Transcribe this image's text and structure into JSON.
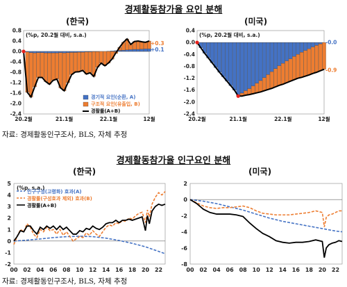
{
  "figure1": {
    "title": "경제활동참가율 요인 분해",
    "source": "자료: 경제활동인구조사, BLS, 자체 추정",
    "charts": [
      {
        "country": "(한국)",
        "unit_label": "(%p, 20.2월 대비, s.a.)",
        "chart_data": {
          "type": "bar",
          "x_tick_labels": [
            "20.2월",
            "21.1월",
            "22.1월",
            "12월"
          ],
          "y_ticks": [
            "0.8",
            "0.4",
            "0.0",
            "-0.4",
            "-0.8",
            "-1.2",
            "-1.6",
            "-2.0",
            "-2.4"
          ],
          "ylim": [
            -2.4,
            0.8
          ],
          "months": [
            "20.2",
            "20.3",
            "20.4",
            "20.5",
            "20.6",
            "20.7",
            "20.8",
            "20.9",
            "20.10",
            "20.11",
            "20.12",
            "21.1",
            "21.2",
            "21.3",
            "21.4",
            "21.5",
            "21.6",
            "21.7",
            "21.8",
            "21.9",
            "21.10",
            "21.11",
            "21.12",
            "22.1",
            "22.2",
            "22.3",
            "22.4",
            "22.5",
            "22.6",
            "22.7",
            "22.8",
            "22.9",
            "22.10",
            "22.11",
            "22.12"
          ],
          "series": [
            {
              "name": "경기적 요인(순환, A)",
              "values": [
                0,
                -0.02,
                -0.05,
                -0.06,
                -0.05,
                -0.05,
                -0.06,
                -0.06,
                -0.06,
                -0.06,
                -0.05,
                -0.06,
                -0.05,
                -0.04,
                -0.04,
                -0.03,
                -0.03,
                -0.02,
                -0.02,
                -0.01,
                -0.01,
                0,
                0,
                0.01,
                0.02,
                0.03,
                0.04,
                0.05,
                0.06,
                0.07,
                0.08,
                0.08,
                0.09,
                0.1,
                0.1
              ]
            },
            {
              "name": "구조적 요인(유출입, B)",
              "values": [
                0,
                -1.55,
                -1.7,
                -1.3,
                -0.95,
                -0.95,
                -1.1,
                -1.2,
                -1.05,
                -1.0,
                -1.35,
                -1.45,
                -1.15,
                -0.85,
                -0.75,
                -0.75,
                -0.7,
                -0.85,
                -0.8,
                -0.95,
                -0.6,
                -0.45,
                -0.55,
                -0.45,
                -0.3,
                -0.08,
                0.12,
                0.3,
                0.42,
                0.2,
                0.3,
                0.32,
                0.28,
                0.25,
                0.3
              ]
            },
            {
              "name": "경활률(A+B)",
              "values": [
                0,
                -1.57,
                -1.75,
                -1.36,
                -1.0,
                -1.0,
                -1.16,
                -1.26,
                -1.11,
                -1.06,
                -1.4,
                -1.51,
                -1.2,
                -0.89,
                -0.79,
                -0.78,
                -0.73,
                -0.87,
                -0.82,
                -0.96,
                -0.61,
                -0.45,
                -0.55,
                -0.44,
                -0.28,
                -0.05,
                0.16,
                0.35,
                0.48,
                0.27,
                0.38,
                0.4,
                0.37,
                0.35,
                0.4
              ]
            }
          ],
          "end_labels": [
            "+0.3",
            "+0.1"
          ],
          "colors": {
            "cyclical": "#4472C4",
            "structural": "#ED7D31",
            "total": "#000000",
            "marker": "#E8201B"
          }
        }
      },
      {
        "country": "(미국)",
        "unit_label": "(%p, 20.2월 대비, s.a.)",
        "chart_data": {
          "type": "bar",
          "x_tick_labels": [
            "20.2월",
            "21.1월",
            "22.1월",
            "12월"
          ],
          "y_ticks": [
            "0.4",
            "0.0",
            "-0.4",
            "-0.8",
            "-1.2",
            "-1.6",
            "-2.0",
            "-2.4"
          ],
          "ylim": [
            -2.4,
            0.4
          ],
          "months": [
            "20.2",
            "20.3",
            "20.4",
            "20.5",
            "20.6",
            "20.7",
            "20.8",
            "20.9",
            "20.10",
            "20.11",
            "20.12",
            "21.1",
            "21.2",
            "21.3",
            "21.4",
            "21.5",
            "21.6",
            "21.7",
            "21.8",
            "21.9",
            "21.10",
            "21.11",
            "21.12",
            "22.1",
            "22.2",
            "22.3",
            "22.4",
            "22.5",
            "22.6",
            "22.7",
            "22.8",
            "22.9",
            "22.10",
            "22.11",
            "22.12"
          ],
          "series": [
            {
              "name": "경기적 요인(순환, A)",
              "values": [
                0,
                -0.18,
                -0.36,
                -0.52,
                -0.68,
                -0.84,
                -1.0,
                -1.15,
                -1.3,
                -1.45,
                -1.6,
                -1.75,
                -1.7,
                -1.62,
                -1.55,
                -1.46,
                -1.37,
                -1.28,
                -1.18,
                -1.08,
                -0.98,
                -0.88,
                -0.78,
                -0.7,
                -0.62,
                -0.55,
                -0.47,
                -0.4,
                -0.33,
                -0.27,
                -0.21,
                -0.15,
                -0.1,
                -0.05,
                0
              ]
            },
            {
              "name": "구조적 요인(유출입, B)",
              "values": [
                0,
                0,
                0,
                0,
                0,
                0,
                0,
                0,
                0,
                0,
                0,
                -0.05,
                -0.1,
                -0.15,
                -0.2,
                -0.26,
                -0.32,
                -0.38,
                -0.44,
                -0.5,
                -0.56,
                -0.61,
                -0.66,
                -0.7,
                -0.73,
                -0.75,
                -0.78,
                -0.8,
                -0.84,
                -0.86,
                -0.88,
                -0.89,
                -0.9,
                -0.9,
                -0.9
              ]
            },
            {
              "name": "경활률(A+B)",
              "values": [
                0,
                -0.18,
                -0.36,
                -0.52,
                -0.68,
                -0.84,
                -1.0,
                -1.15,
                -1.3,
                -1.45,
                -1.6,
                -1.8,
                -1.8,
                -1.77,
                -1.75,
                -1.72,
                -1.69,
                -1.66,
                -1.62,
                -1.58,
                -1.54,
                -1.49,
                -1.44,
                -1.4,
                -1.35,
                -1.3,
                -1.25,
                -1.2,
                -1.17,
                -1.13,
                -1.09,
                -1.04,
                -1.0,
                -0.95,
                -0.9
              ]
            }
          ],
          "end_labels": [
            "-0.0",
            "-0.9"
          ],
          "colors": {
            "cyclical": "#4472C4",
            "structural": "#ED7D31",
            "total": "#000000",
            "marker": "#E8201B"
          }
        }
      }
    ]
  },
  "figure2": {
    "title": "경제활동참가율 인구요인 분해",
    "source": "자료: 경제활동인구조사, BLS, 자체 추정",
    "charts": [
      {
        "country": "(한국)",
        "unit_label": "(%p, s.a.)",
        "chart_data": {
          "type": "line",
          "x_tick_labels": [
            "00",
            "02",
            "04",
            "06",
            "08",
            "10",
            "12",
            "14",
            "16",
            "18",
            "20",
            "22"
          ],
          "y_ticks": [
            "5",
            "4",
            "3",
            "2",
            "1",
            "0",
            "-1",
            "-2"
          ],
          "ylim": [
            -2,
            5
          ],
          "xlim": [
            2000,
            2023
          ],
          "series": [
            {
              "name": "인구구성(고령화) 효과(A)",
              "style": "dashed",
              "color": "#4472C4",
              "x": [
                2000,
                2002,
                2004,
                2006,
                2008,
                2010,
                2012,
                2014,
                2016,
                2018,
                2020,
                2022,
                2023
              ],
              "y": [
                0,
                0.08,
                0.18,
                0.3,
                0.38,
                0.42,
                0.38,
                0.25,
                0.05,
                -0.2,
                -0.5,
                -0.9,
                -1.1
              ]
            },
            {
              "name": "경활률(구성효과 제외) 효과(B)",
              "style": "dashed",
              "color": "#ED7D31",
              "x": [
                2000,
                2000.5,
                2001,
                2001.5,
                2002,
                2002.5,
                2003,
                2003.5,
                2004,
                2004.5,
                2005,
                2005.5,
                2006,
                2006.5,
                2007,
                2007.5,
                2008,
                2008.5,
                2009,
                2009.5,
                2010,
                2010.5,
                2011,
                2011.5,
                2012,
                2012.5,
                2013,
                2013.5,
                2014,
                2014.5,
                2015,
                2015.5,
                2016,
                2016.5,
                2017,
                2017.5,
                2018,
                2018.5,
                2019,
                2019.5,
                2020,
                2020.3,
                2020.6,
                2021,
                2021.5,
                2022,
                2022.5,
                2023
              ],
              "y": [
                -0.3,
                0.4,
                1.0,
                0.8,
                1.5,
                1.2,
                0.6,
                0.3,
                1.0,
                0.8,
                1.2,
                0.9,
                1.0,
                0.6,
                1.0,
                0.5,
                0.8,
                0.4,
                0.0,
                0.2,
                0.4,
                0.3,
                0.7,
                0.5,
                0.9,
                0.6,
                0.4,
                0.8,
                1.2,
                1.4,
                1.3,
                1.6,
                1.5,
                1.8,
                1.7,
                2.0,
                1.9,
                2.2,
                2.4,
                2.5,
                1.6,
                2.7,
                2.1,
                3.2,
                3.8,
                4.2,
                4.0,
                4.3
              ]
            },
            {
              "name": "경활률(A+B)",
              "style": "solid",
              "color": "#000000",
              "x": [
                2000,
                2000.5,
                2001,
                2001.5,
                2002,
                2002.5,
                2003,
                2003.5,
                2004,
                2004.5,
                2005,
                2005.5,
                2006,
                2006.5,
                2007,
                2007.5,
                2008,
                2008.5,
                2009,
                2009.5,
                2010,
                2010.5,
                2011,
                2011.5,
                2012,
                2012.5,
                2013,
                2013.5,
                2014,
                2014.5,
                2015,
                2015.5,
                2016,
                2016.5,
                2017,
                2017.5,
                2018,
                2018.5,
                2019,
                2019.5,
                2020,
                2020.3,
                2020.6,
                2021,
                2021.5,
                2022,
                2022.5,
                2023
              ],
              "y": [
                0,
                0.4,
                0.9,
                0.8,
                1.3,
                1.3,
                0.9,
                0.6,
                1.2,
                1.0,
                1.3,
                1.1,
                1.3,
                1.0,
                1.3,
                1.0,
                1.2,
                0.9,
                0.6,
                0.6,
                0.9,
                0.8,
                1.1,
                1.0,
                1.3,
                1.1,
                1.0,
                1.2,
                1.5,
                1.6,
                1.6,
                1.8,
                1.6,
                1.8,
                1.8,
                1.9,
                1.8,
                1.9,
                2.0,
                2.1,
                0.9,
                2.2,
                1.5,
                2.6,
                3.0,
                3.2,
                3.1,
                3.2
              ]
            }
          ],
          "legend_placement": "top-left"
        }
      },
      {
        "country": "(미국)",
        "chart_data": {
          "type": "line",
          "x_tick_labels": [
            "00",
            "02",
            "04",
            "06",
            "08",
            "10",
            "12",
            "14",
            "16",
            "18",
            "20",
            "22"
          ],
          "y_ticks": [
            "2",
            "0",
            "-2",
            "-4",
            "-6",
            "-8"
          ],
          "ylim": [
            -8,
            2
          ],
          "xlim": [
            2000,
            2023
          ],
          "series": [
            {
              "style": "dashed",
              "color": "#4472C4",
              "x": [
                2000,
                2002,
                2004,
                2006,
                2008,
                2010,
                2012,
                2014,
                2016,
                2018,
                2020,
                2022,
                2023
              ],
              "y": [
                0,
                -0.2,
                -0.5,
                -0.9,
                -1.3,
                -1.8,
                -2.3,
                -2.7,
                -3.0,
                -3.3,
                -3.6,
                -3.9,
                -4.0
              ]
            },
            {
              "style": "dashed",
              "color": "#ED7D31",
              "x": [
                2000,
                2001,
                2002,
                2003,
                2004,
                2005,
                2006,
                2007,
                2008,
                2009,
                2010,
                2011,
                2012,
                2013,
                2014,
                2015,
                2016,
                2017,
                2018,
                2019,
                2020,
                2020.3,
                2020.6,
                2021,
                2021.5,
                2022,
                2022.5,
                2023
              ],
              "y": [
                0,
                -0.4,
                -0.8,
                -1.0,
                -1.1,
                -1.0,
                -1.0,
                -0.9,
                -0.8,
                -1.0,
                -1.4,
                -1.7,
                -1.8,
                -1.9,
                -1.9,
                -1.9,
                -1.8,
                -1.7,
                -1.6,
                -1.4,
                -1.6,
                -3.4,
                -2.2,
                -1.9,
                -1.8,
                -1.6,
                -1.4,
                -1.4
              ]
            },
            {
              "style": "solid",
              "color": "#000000",
              "x": [
                2000,
                2001,
                2002,
                2003,
                2004,
                2005,
                2006,
                2007,
                2008,
                2009,
                2010,
                2011,
                2012,
                2013,
                2014,
                2015,
                2016,
                2017,
                2018,
                2019,
                2020,
                2020.3,
                2020.6,
                2021,
                2021.5,
                2022,
                2022.5,
                2023
              ],
              "y": [
                0,
                -0.5,
                -1.2,
                -1.6,
                -1.8,
                -1.8,
                -1.8,
                -1.9,
                -2.1,
                -2.9,
                -3.6,
                -4.2,
                -4.6,
                -5.1,
                -5.3,
                -5.4,
                -5.3,
                -5.3,
                -5.2,
                -5.0,
                -5.2,
                -7.2,
                -6.0,
                -5.6,
                -5.4,
                -5.3,
                -5.1,
                -5.2
              ]
            }
          ]
        }
      }
    ]
  }
}
